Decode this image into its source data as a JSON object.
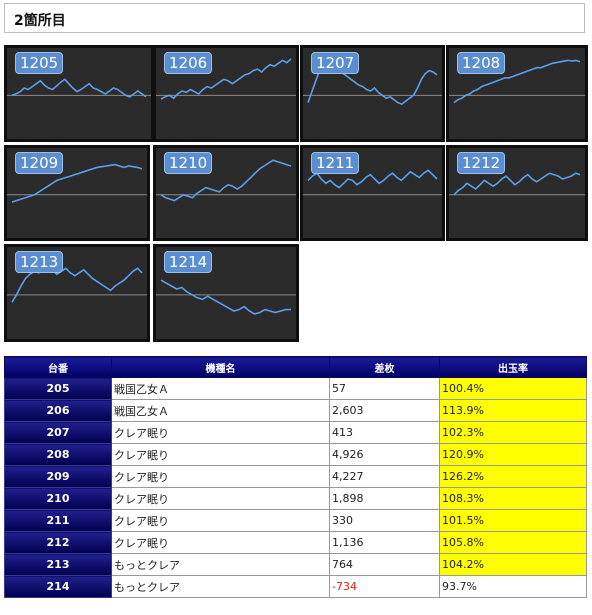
{
  "page": {
    "title": "2箇所目"
  },
  "tiles": [
    {
      "label": "1205",
      "series": [
        50,
        52,
        55,
        60,
        58,
        62,
        66,
        70,
        64,
        60,
        58,
        63,
        68,
        72,
        66,
        60,
        55,
        58,
        62,
        66,
        60,
        58,
        55,
        52,
        56,
        60,
        58,
        54,
        50,
        48,
        52,
        56,
        52,
        48
      ]
    },
    {
      "label": "1206",
      "series": [
        45,
        48,
        50,
        46,
        52,
        56,
        54,
        58,
        55,
        52,
        58,
        62,
        60,
        64,
        68,
        72,
        70,
        66,
        70,
        74,
        78,
        80,
        84,
        86,
        82,
        88,
        92,
        90,
        94,
        98,
        95,
        100
      ]
    },
    {
      "label": "1207",
      "series": [
        40,
        55,
        70,
        85,
        92,
        90,
        88,
        86,
        84,
        80,
        76,
        72,
        68,
        64,
        62,
        58,
        56,
        60,
        54,
        50,
        46,
        48,
        44,
        40,
        38,
        42,
        46,
        50,
        60,
        72,
        80,
        84,
        82,
        78
      ]
    },
    {
      "label": "1208",
      "series": [
        40,
        44,
        46,
        50,
        52,
        56,
        58,
        62,
        64,
        66,
        68,
        70,
        72,
        74,
        74,
        76,
        78,
        80,
        82,
        84,
        86,
        88,
        88,
        90,
        92,
        94,
        95,
        96,
        97,
        98,
        97,
        98,
        96
      ]
    },
    {
      "label": "1209",
      "series": [
        40,
        42,
        44,
        46,
        48,
        50,
        54,
        58,
        62,
        66,
        70,
        72,
        74,
        76,
        78,
        80,
        82,
        84,
        86,
        88,
        89,
        90,
        91,
        92,
        90,
        88,
        90,
        89,
        88,
        86
      ]
    },
    {
      "label": "1210",
      "series": [
        50,
        46,
        44,
        42,
        46,
        50,
        48,
        46,
        52,
        56,
        60,
        58,
        56,
        54,
        60,
        64,
        62,
        58,
        62,
        68,
        74,
        80,
        86,
        90,
        94,
        98,
        96,
        94,
        92,
        90
      ]
    },
    {
      "label": "1211",
      "series": [
        70,
        76,
        80,
        72,
        66,
        70,
        64,
        60,
        66,
        72,
        70,
        64,
        68,
        74,
        78,
        72,
        66,
        70,
        76,
        80,
        74,
        70,
        76,
        82,
        78,
        74,
        80,
        84,
        78,
        72
      ]
    },
    {
      "label": "1212",
      "series": [
        50,
        56,
        60,
        66,
        62,
        58,
        64,
        70,
        66,
        62,
        66,
        72,
        76,
        70,
        64,
        68,
        74,
        78,
        72,
        68,
        72,
        76,
        80,
        78,
        76,
        72,
        74,
        76,
        80,
        78
      ]
    },
    {
      "label": "1213",
      "series": [
        40,
        50,
        62,
        72,
        78,
        82,
        80,
        86,
        90,
        84,
        78,
        82,
        86,
        80,
        76,
        80,
        84,
        78,
        72,
        68,
        64,
        60,
        56,
        62,
        66,
        70,
        76,
        82,
        86,
        80
      ]
    },
    {
      "label": "1214",
      "series": [
        70,
        66,
        62,
        58,
        60,
        54,
        50,
        46,
        44,
        48,
        44,
        40,
        36,
        32,
        28,
        30,
        34,
        28,
        24,
        26,
        30,
        28,
        26,
        28,
        30,
        30
      ]
    }
  ],
  "table": {
    "headers": [
      "台番",
      "機種名",
      "差枚",
      "出玉率"
    ],
    "rows": [
      {
        "no": "205",
        "machine": "戦国乙女Ａ",
        "diff": "57",
        "rate": "100.4%",
        "hi": true,
        "neg": false
      },
      {
        "no": "206",
        "machine": "戦国乙女Ａ",
        "diff": "2,603",
        "rate": "113.9%",
        "hi": true,
        "neg": false
      },
      {
        "no": "207",
        "machine": "クレア眠り",
        "diff": "413",
        "rate": "102.3%",
        "hi": true,
        "neg": false
      },
      {
        "no": "208",
        "machine": "クレア眠り",
        "diff": "4,926",
        "rate": "120.9%",
        "hi": true,
        "neg": false
      },
      {
        "no": "209",
        "machine": "クレア眠り",
        "diff": "4,227",
        "rate": "126.2%",
        "hi": true,
        "neg": false
      },
      {
        "no": "210",
        "machine": "クレア眠り",
        "diff": "1,898",
        "rate": "108.3%",
        "hi": true,
        "neg": false
      },
      {
        "no": "211",
        "machine": "クレア眠り",
        "diff": "330",
        "rate": "101.5%",
        "hi": true,
        "neg": false
      },
      {
        "no": "212",
        "machine": "クレア眠り",
        "diff": "1,136",
        "rate": "105.8%",
        "hi": true,
        "neg": false
      },
      {
        "no": "213",
        "machine": "もっとクレア",
        "diff": "764",
        "rate": "104.2%",
        "hi": true,
        "neg": false
      },
      {
        "no": "214",
        "machine": "もっとクレア",
        "diff": "-734",
        "rate": "93.7%",
        "hi": false,
        "neg": true
      }
    ]
  },
  "colors": {
    "line": "#5aa0e8",
    "baseline": "#8a8a8a",
    "tile_bg": "#2b2b2b",
    "highlight": "#ffff00",
    "header": "#00006e"
  }
}
